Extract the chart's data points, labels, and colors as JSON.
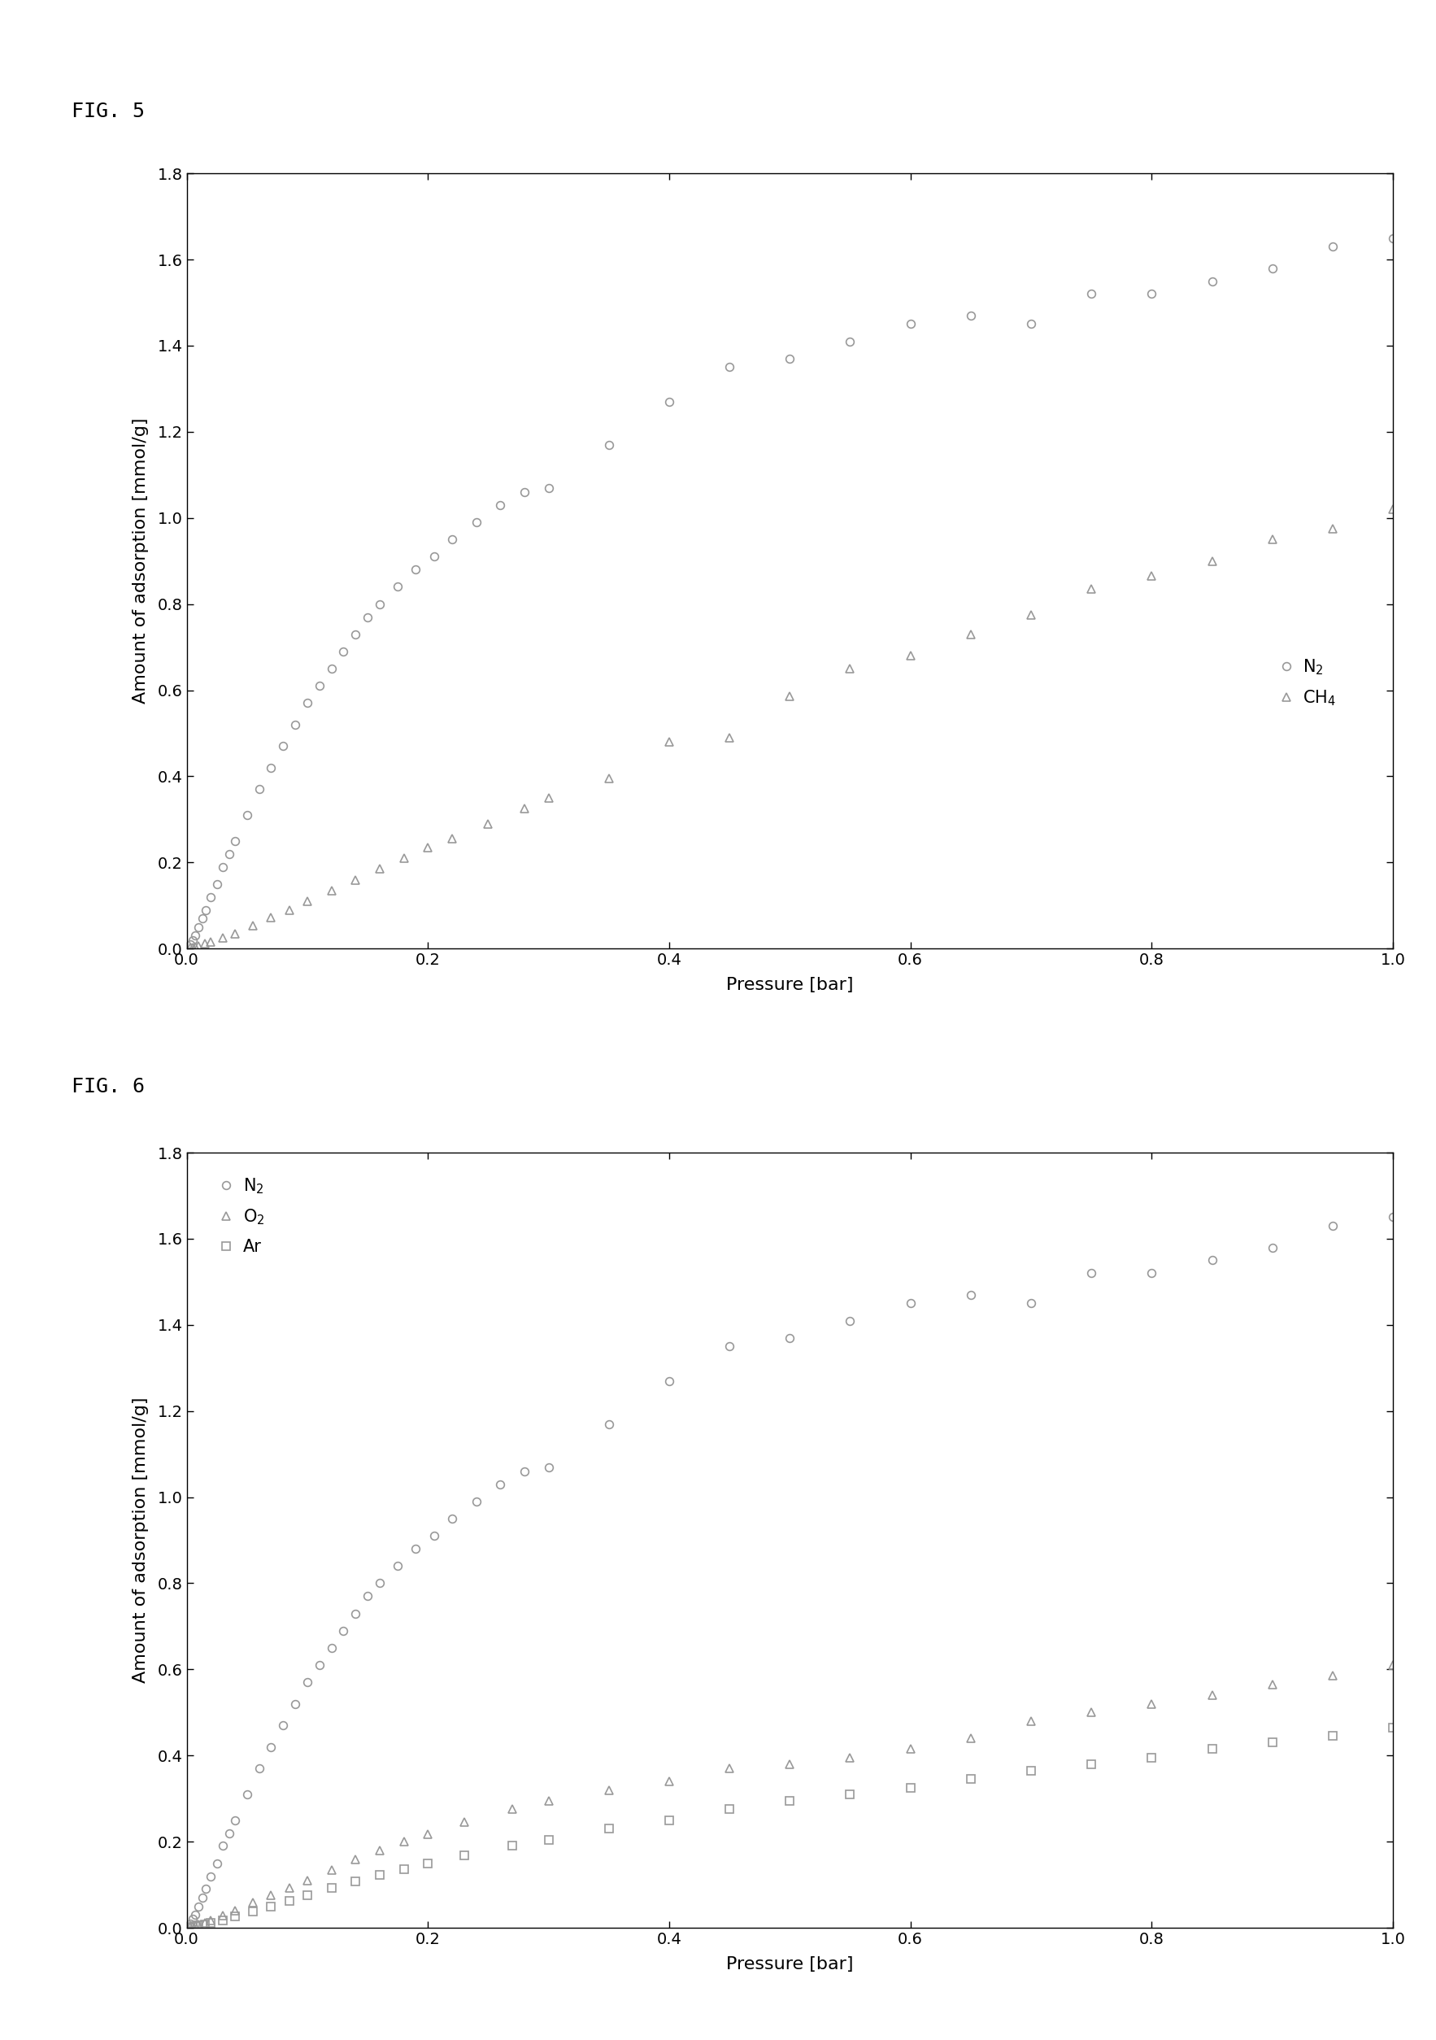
{
  "fig5": {
    "N2_x": [
      0.003,
      0.005,
      0.007,
      0.01,
      0.013,
      0.016,
      0.02,
      0.025,
      0.03,
      0.035,
      0.04,
      0.05,
      0.06,
      0.07,
      0.08,
      0.09,
      0.1,
      0.11,
      0.12,
      0.13,
      0.14,
      0.15,
      0.16,
      0.175,
      0.19,
      0.205,
      0.22,
      0.24,
      0.26,
      0.28,
      0.3,
      0.35,
      0.4,
      0.45,
      0.5,
      0.55,
      0.6,
      0.65,
      0.7,
      0.75,
      0.8,
      0.85,
      0.9,
      0.95,
      1.0
    ],
    "N2_y": [
      0.01,
      0.02,
      0.03,
      0.05,
      0.07,
      0.09,
      0.12,
      0.15,
      0.19,
      0.22,
      0.25,
      0.31,
      0.37,
      0.42,
      0.47,
      0.52,
      0.57,
      0.61,
      0.65,
      0.69,
      0.73,
      0.77,
      0.8,
      0.84,
      0.88,
      0.91,
      0.95,
      0.99,
      1.03,
      1.06,
      1.07,
      1.17,
      1.27,
      1.35,
      1.37,
      1.41,
      1.45,
      1.47,
      1.45,
      1.52,
      1.52,
      1.55,
      1.58,
      1.63,
      1.65
    ],
    "CH4_x": [
      0.003,
      0.005,
      0.007,
      0.01,
      0.015,
      0.02,
      0.03,
      0.04,
      0.055,
      0.07,
      0.085,
      0.1,
      0.12,
      0.14,
      0.16,
      0.18,
      0.2,
      0.22,
      0.25,
      0.28,
      0.3,
      0.35,
      0.4,
      0.45,
      0.5,
      0.55,
      0.6,
      0.65,
      0.7,
      0.75,
      0.8,
      0.85,
      0.9,
      0.95,
      1.0
    ],
    "CH4_y": [
      0.002,
      0.003,
      0.005,
      0.007,
      0.011,
      0.015,
      0.025,
      0.035,
      0.053,
      0.072,
      0.09,
      0.11,
      0.135,
      0.16,
      0.185,
      0.21,
      0.235,
      0.255,
      0.29,
      0.325,
      0.35,
      0.395,
      0.48,
      0.49,
      0.585,
      0.65,
      0.68,
      0.73,
      0.775,
      0.835,
      0.865,
      0.9,
      0.95,
      0.975,
      1.02
    ],
    "xlabel": "Pressure [bar]",
    "ylabel": "Amount of adsorption [mmol/g]",
    "xlim": [
      0.0,
      1.0
    ],
    "ylim": [
      0.0,
      1.8
    ],
    "xticks": [
      0.0,
      0.2,
      0.4,
      0.6,
      0.8,
      1.0
    ],
    "yticks": [
      0.0,
      0.2,
      0.4,
      0.6,
      0.8,
      1.0,
      1.2,
      1.4,
      1.6,
      1.8
    ],
    "legend_N2": "N$_2$",
    "legend_CH4": "CH$_4$",
    "fig_label": "FIG. 5"
  },
  "fig6": {
    "N2_x": [
      0.003,
      0.005,
      0.007,
      0.01,
      0.013,
      0.016,
      0.02,
      0.025,
      0.03,
      0.035,
      0.04,
      0.05,
      0.06,
      0.07,
      0.08,
      0.09,
      0.1,
      0.11,
      0.12,
      0.13,
      0.14,
      0.15,
      0.16,
      0.175,
      0.19,
      0.205,
      0.22,
      0.24,
      0.26,
      0.28,
      0.3,
      0.35,
      0.4,
      0.45,
      0.5,
      0.55,
      0.6,
      0.65,
      0.7,
      0.75,
      0.8,
      0.85,
      0.9,
      0.95,
      1.0
    ],
    "N2_y": [
      0.01,
      0.02,
      0.03,
      0.05,
      0.07,
      0.09,
      0.12,
      0.15,
      0.19,
      0.22,
      0.25,
      0.31,
      0.37,
      0.42,
      0.47,
      0.52,
      0.57,
      0.61,
      0.65,
      0.69,
      0.73,
      0.77,
      0.8,
      0.84,
      0.88,
      0.91,
      0.95,
      0.99,
      1.03,
      1.06,
      1.07,
      1.17,
      1.27,
      1.35,
      1.37,
      1.41,
      1.45,
      1.47,
      1.45,
      1.52,
      1.52,
      1.55,
      1.58,
      1.63,
      1.65
    ],
    "O2_x": [
      0.003,
      0.005,
      0.007,
      0.01,
      0.015,
      0.02,
      0.03,
      0.04,
      0.055,
      0.07,
      0.085,
      0.1,
      0.12,
      0.14,
      0.16,
      0.18,
      0.2,
      0.23,
      0.27,
      0.3,
      0.35,
      0.4,
      0.45,
      0.5,
      0.55,
      0.6,
      0.65,
      0.7,
      0.75,
      0.8,
      0.85,
      0.9,
      0.95,
      1.0
    ],
    "O2_y": [
      0.002,
      0.003,
      0.005,
      0.007,
      0.012,
      0.017,
      0.028,
      0.04,
      0.058,
      0.075,
      0.092,
      0.11,
      0.135,
      0.158,
      0.18,
      0.2,
      0.218,
      0.245,
      0.275,
      0.295,
      0.32,
      0.34,
      0.37,
      0.38,
      0.395,
      0.415,
      0.44,
      0.48,
      0.5,
      0.52,
      0.54,
      0.565,
      0.585,
      0.61
    ],
    "Ar_x": [
      0.003,
      0.005,
      0.007,
      0.01,
      0.015,
      0.02,
      0.03,
      0.04,
      0.055,
      0.07,
      0.085,
      0.1,
      0.12,
      0.14,
      0.16,
      0.18,
      0.2,
      0.23,
      0.27,
      0.3,
      0.35,
      0.4,
      0.45,
      0.5,
      0.55,
      0.6,
      0.65,
      0.7,
      0.75,
      0.8,
      0.85,
      0.9,
      0.95,
      1.0
    ],
    "Ar_y": [
      0.001,
      0.002,
      0.003,
      0.005,
      0.008,
      0.012,
      0.018,
      0.026,
      0.038,
      0.05,
      0.062,
      0.075,
      0.092,
      0.108,
      0.123,
      0.137,
      0.15,
      0.168,
      0.19,
      0.205,
      0.23,
      0.25,
      0.275,
      0.295,
      0.31,
      0.325,
      0.345,
      0.365,
      0.38,
      0.395,
      0.415,
      0.43,
      0.445,
      0.465
    ],
    "xlabel": "Pressure [bar]",
    "ylabel": "Amount of adsorption [mmol/g]",
    "xlim": [
      0.0,
      1.0
    ],
    "ylim": [
      0.0,
      1.8
    ],
    "xticks": [
      0.0,
      0.2,
      0.4,
      0.6,
      0.8,
      1.0
    ],
    "yticks": [
      0.0,
      0.2,
      0.4,
      0.6,
      0.8,
      1.0,
      1.2,
      1.4,
      1.6,
      1.8
    ],
    "legend_N2": "N$_2$",
    "legend_O2": "O$_2$",
    "legend_Ar": "Ar",
    "fig_label": "FIG. 6"
  },
  "marker_size": 7,
  "marker_edge_width": 1.2,
  "marker_color": "#999999",
  "bg_color": "#ffffff",
  "font_size_label": 16,
  "font_size_tick": 14,
  "font_size_legend": 15,
  "font_size_figlabel": 18
}
